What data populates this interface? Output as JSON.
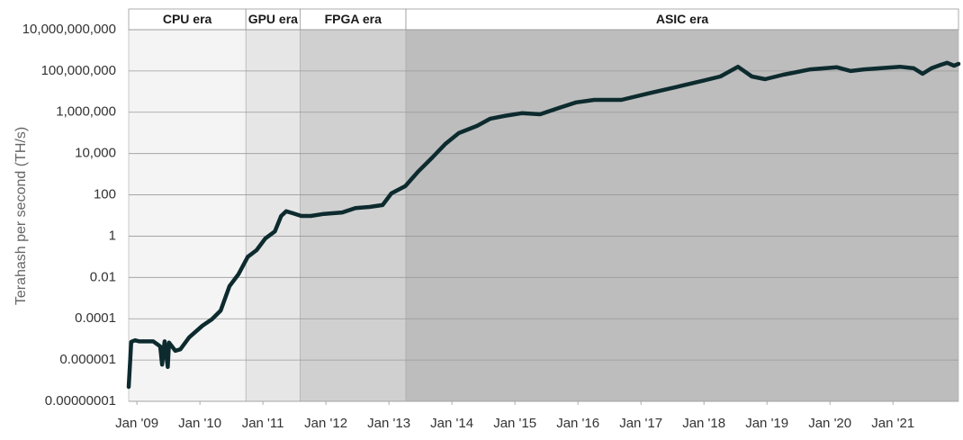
{
  "chart_data": {
    "type": "line",
    "y_label": "Terahash per second (TH/s)",
    "ylog": true,
    "grid": true,
    "color": "#0d2b2e",
    "xlim": [
      2008.87,
      2022.04
    ],
    "ylim": [
      1e-08,
      10000000000.0
    ],
    "yticks": [
      {
        "value": 10000000000,
        "label": "10,000,000,000"
      },
      {
        "value": 100000000,
        "label": "100,000,000"
      },
      {
        "value": 1000000,
        "label": "1,000,000"
      },
      {
        "value": 10000,
        "label": "10,000"
      },
      100,
      1,
      0.01,
      0.0001,
      1e-06,
      {
        "value": 1e-08,
        "label": "0.00000001"
      }
    ],
    "xticks": [
      {
        "value": 2009,
        "label": "Jan '09"
      },
      {
        "value": 2010,
        "label": "Jan '10"
      },
      {
        "value": 2011,
        "label": "Jan '11"
      },
      {
        "value": 2012,
        "label": "Jan '12"
      },
      {
        "value": 2013,
        "label": "Jan '13"
      },
      {
        "value": 2014,
        "label": "Jan '14"
      },
      {
        "value": 2015,
        "label": "Jan '15"
      },
      {
        "value": 2016,
        "label": "Jan '16"
      },
      {
        "value": 2017,
        "label": "Jan '17"
      },
      {
        "value": 2018,
        "label": "Jan '18"
      },
      {
        "value": 2019,
        "label": "Jan '19"
      },
      {
        "value": 2020,
        "label": "Jan '20"
      },
      {
        "value": 2021,
        "label": "Jan '21"
      }
    ],
    "eras": [
      {
        "name": "CPU era",
        "start": 2008.87,
        "end": 2010.73,
        "color": "#f4f4f4"
      },
      {
        "name": "GPU era",
        "start": 2010.73,
        "end": 2011.59,
        "color": "#e6e6e6"
      },
      {
        "name": "FPGA era",
        "start": 2011.59,
        "end": 2013.27,
        "color": "#d0d0d0"
      },
      {
        "name": "ASIC era",
        "start": 2013.27,
        "end": 2022.04,
        "color": "#bdbdbd"
      }
    ],
    "x": [
      2008.87,
      2008.91,
      2008.97,
      2009.04,
      2009.26,
      2009.37,
      2009.4,
      2009.44,
      2009.49,
      2009.51,
      2009.61,
      2009.69,
      2009.83,
      2010.04,
      2010.19,
      2010.33,
      2010.47,
      2010.61,
      2010.76,
      2010.9,
      2011.04,
      2011.19,
      2011.29,
      2011.37,
      2011.47,
      2011.61,
      2011.76,
      2011.97,
      2012.26,
      2012.47,
      2012.69,
      2012.9,
      2013.04,
      2013.26,
      2013.47,
      2013.69,
      2013.9,
      2014.11,
      2014.4,
      2014.61,
      2014.83,
      2015.11,
      2015.4,
      2015.69,
      2015.97,
      2016.26,
      2016.69,
      2017.11,
      2017.54,
      2017.97,
      2018.26,
      2018.54,
      2018.76,
      2018.97,
      2019.26,
      2019.69,
      2020.11,
      2020.33,
      2020.54,
      2021.11,
      2021.33,
      2021.47,
      2021.61,
      2021.76,
      2021.86,
      2021.97,
      2022.04
    ],
    "values": [
      5e-08,
      7.6e-06,
      9e-06,
      8e-06,
      8e-06,
      4.6e-06,
      6e-07,
      8e-06,
      4.6e-07,
      7e-06,
      2.8e-06,
      3.3e-06,
      1.26e-05,
      4.6e-05,
      9.3e-05,
      0.00025,
      0.0038,
      0.014,
      0.1,
      0.21,
      0.78,
      1.7,
      9.5,
      16,
      13,
      9.5,
      9.5,
      12,
      14,
      23,
      26,
      32,
      118,
      263,
      1400,
      6500,
      30000,
      98000,
      220000,
      490000,
      660000,
      900000,
      800000,
      1600000,
      3000000,
      4000000,
      4000000,
      8100000,
      16000000,
      33000000,
      54000000,
      160000000,
      54000000,
      40000000,
      66000000,
      120000000,
      150000000,
      100000000,
      120000000,
      160000000,
      135000000,
      73000000,
      135000000,
      200000000,
      250000000,
      180000000,
      220000000
    ]
  }
}
